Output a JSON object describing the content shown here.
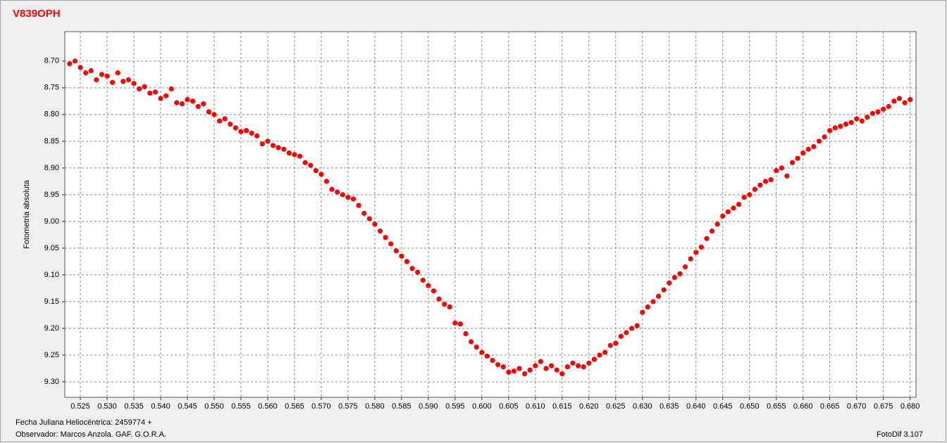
{
  "chart_data": {
    "type": "scatter",
    "title": "V839OPH",
    "ylabel": "Fotometría absoluta",
    "notes": [
      "Fecha Juliana Heliocéntrica: 2459774 +",
      "Observador:  Marcos Anzola. GAF. G.O.R.A.",
      "FotoDif 3.107"
    ],
    "color": "#ff0000",
    "grid": true,
    "y_inverted": true,
    "xlim": [
      0.5221,
      0.6811
    ],
    "ylim": [
      8.645,
      9.329
    ],
    "xticks": [
      0.525,
      {
        "value": 0.53,
        "label": "0.530"
      },
      0.535,
      {
        "value": 0.54,
        "label": "0.540"
      },
      0.545,
      {
        "value": 0.55,
        "label": "0.550"
      },
      0.555,
      {
        "value": 0.56,
        "label": "0.560"
      },
      0.565,
      {
        "value": 0.57,
        "label": "0.570"
      },
      0.575,
      {
        "value": 0.58,
        "label": "0.580"
      },
      0.585,
      {
        "value": 0.59,
        "label": "0.590"
      },
      0.595,
      {
        "value": 0.6,
        "label": "0.600"
      },
      0.605,
      {
        "value": 0.61,
        "label": "0.610"
      },
      0.615,
      {
        "value": 0.62,
        "label": "0.620"
      },
      0.625,
      {
        "value": 0.63,
        "label": "0.630"
      },
      0.635,
      {
        "value": 0.64,
        "label": "0.640"
      },
      0.645,
      {
        "value": 0.65,
        "label": "0.650"
      },
      0.655,
      {
        "value": 0.66,
        "label": "0.660"
      },
      0.665,
      {
        "value": 0.67,
        "label": "0.670"
      },
      0.675,
      {
        "value": 0.68,
        "label": "0.680"
      }
    ],
    "yticks": [
      {
        "value": 8.7,
        "label": "8.70"
      },
      8.75,
      {
        "value": 8.8,
        "label": "8.80"
      },
      8.85,
      {
        "value": 8.9,
        "label": "8.90"
      },
      8.95,
      {
        "value": 9.0,
        "label": "9.00"
      },
      9.05,
      {
        "value": 9.1,
        "label": "9.10"
      },
      9.15,
      {
        "value": 9.2,
        "label": "9.20"
      },
      9.25,
      {
        "value": 9.3,
        "label": "9.30"
      }
    ],
    "x": [
      0.523,
      0.524,
      0.525,
      0.526,
      0.527,
      0.528,
      0.529,
      0.53,
      0.531,
      0.532,
      0.533,
      0.534,
      0.535,
      0.536,
      0.537,
      0.538,
      0.539,
      0.54,
      0.541,
      0.542,
      0.543,
      0.544,
      0.545,
      0.546,
      0.547,
      0.548,
      0.549,
      0.55,
      0.551,
      0.552,
      0.553,
      0.554,
      0.555,
      0.556,
      0.557,
      0.558,
      0.559,
      0.56,
      0.561,
      0.562,
      0.563,
      0.564,
      0.565,
      0.566,
      0.567,
      0.568,
      0.569,
      0.57,
      0.571,
      0.572,
      0.573,
      0.574,
      0.575,
      0.576,
      0.577,
      0.578,
      0.579,
      0.58,
      0.581,
      0.582,
      0.583,
      0.584,
      0.585,
      0.586,
      0.587,
      0.588,
      0.589,
      0.59,
      0.591,
      0.592,
      0.593,
      0.594,
      0.595,
      0.596,
      0.597,
      0.598,
      0.599,
      0.6,
      0.601,
      0.602,
      0.603,
      0.604,
      0.605,
      0.606,
      0.607,
      0.608,
      0.609,
      0.61,
      0.611,
      0.612,
      0.613,
      0.614,
      0.615,
      0.616,
      0.617,
      0.618,
      0.619,
      0.62,
      0.621,
      0.622,
      0.623,
      0.624,
      0.625,
      0.626,
      0.627,
      0.628,
      0.629,
      0.63,
      0.631,
      0.632,
      0.633,
      0.634,
      0.635,
      0.636,
      0.637,
      0.638,
      0.639,
      0.64,
      0.641,
      0.642,
      0.643,
      0.644,
      0.645,
      0.646,
      0.647,
      0.648,
      0.649,
      0.65,
      0.651,
      0.652,
      0.653,
      0.654,
      0.655,
      0.656,
      0.657,
      0.658,
      0.659,
      0.66,
      0.661,
      0.662,
      0.663,
      0.664,
      0.665,
      0.666,
      0.667,
      0.668,
      0.669,
      0.67,
      0.671,
      0.672,
      0.673,
      0.674,
      0.675,
      0.676,
      0.677,
      0.678,
      0.679,
      0.68
    ],
    "values": [
      8.705,
      8.7,
      8.712,
      8.722,
      8.718,
      8.735,
      8.725,
      8.728,
      8.74,
      8.722,
      8.738,
      8.735,
      8.742,
      8.752,
      8.748,
      8.76,
      8.758,
      8.77,
      8.765,
      8.752,
      8.778,
      8.78,
      8.772,
      8.775,
      8.785,
      8.78,
      8.795,
      8.8,
      8.812,
      8.808,
      8.818,
      8.825,
      8.832,
      8.83,
      8.835,
      8.84,
      8.855,
      8.85,
      8.858,
      8.862,
      8.865,
      8.872,
      8.875,
      8.878,
      8.89,
      8.895,
      8.905,
      8.912,
      8.925,
      8.94,
      8.945,
      8.95,
      8.955,
      8.958,
      8.97,
      8.985,
      8.995,
      9.005,
      9.018,
      9.03,
      9.042,
      9.055,
      9.065,
      9.075,
      9.088,
      9.095,
      9.11,
      9.12,
      9.13,
      9.145,
      9.155,
      9.16,
      9.19,
      9.192,
      9.21,
      9.225,
      9.235,
      9.245,
      9.252,
      9.26,
      9.268,
      9.272,
      9.282,
      9.28,
      9.275,
      9.285,
      9.278,
      9.27,
      9.262,
      9.275,
      9.27,
      9.278,
      9.285,
      9.272,
      9.265,
      9.27,
      9.272,
      9.265,
      9.258,
      9.25,
      9.245,
      9.232,
      9.228,
      9.215,
      9.208,
      9.2,
      9.195,
      9.17,
      9.16,
      9.15,
      9.14,
      9.128,
      9.115,
      9.105,
      9.098,
      9.085,
      9.07,
      9.058,
      9.048,
      9.032,
      9.018,
      9.005,
      8.99,
      8.982,
      8.975,
      8.968,
      8.955,
      8.95,
      8.94,
      8.932,
      8.925,
      8.922,
      8.905,
      8.9,
      8.915,
      8.89,
      8.882,
      8.872,
      8.865,
      8.86,
      8.85,
      8.842,
      8.83,
      8.825,
      8.822,
      8.818,
      8.815,
      8.808,
      8.812,
      8.805,
      8.798,
      8.795,
      8.79,
      8.785,
      8.775,
      8.77,
      8.778,
      8.772
    ]
  }
}
